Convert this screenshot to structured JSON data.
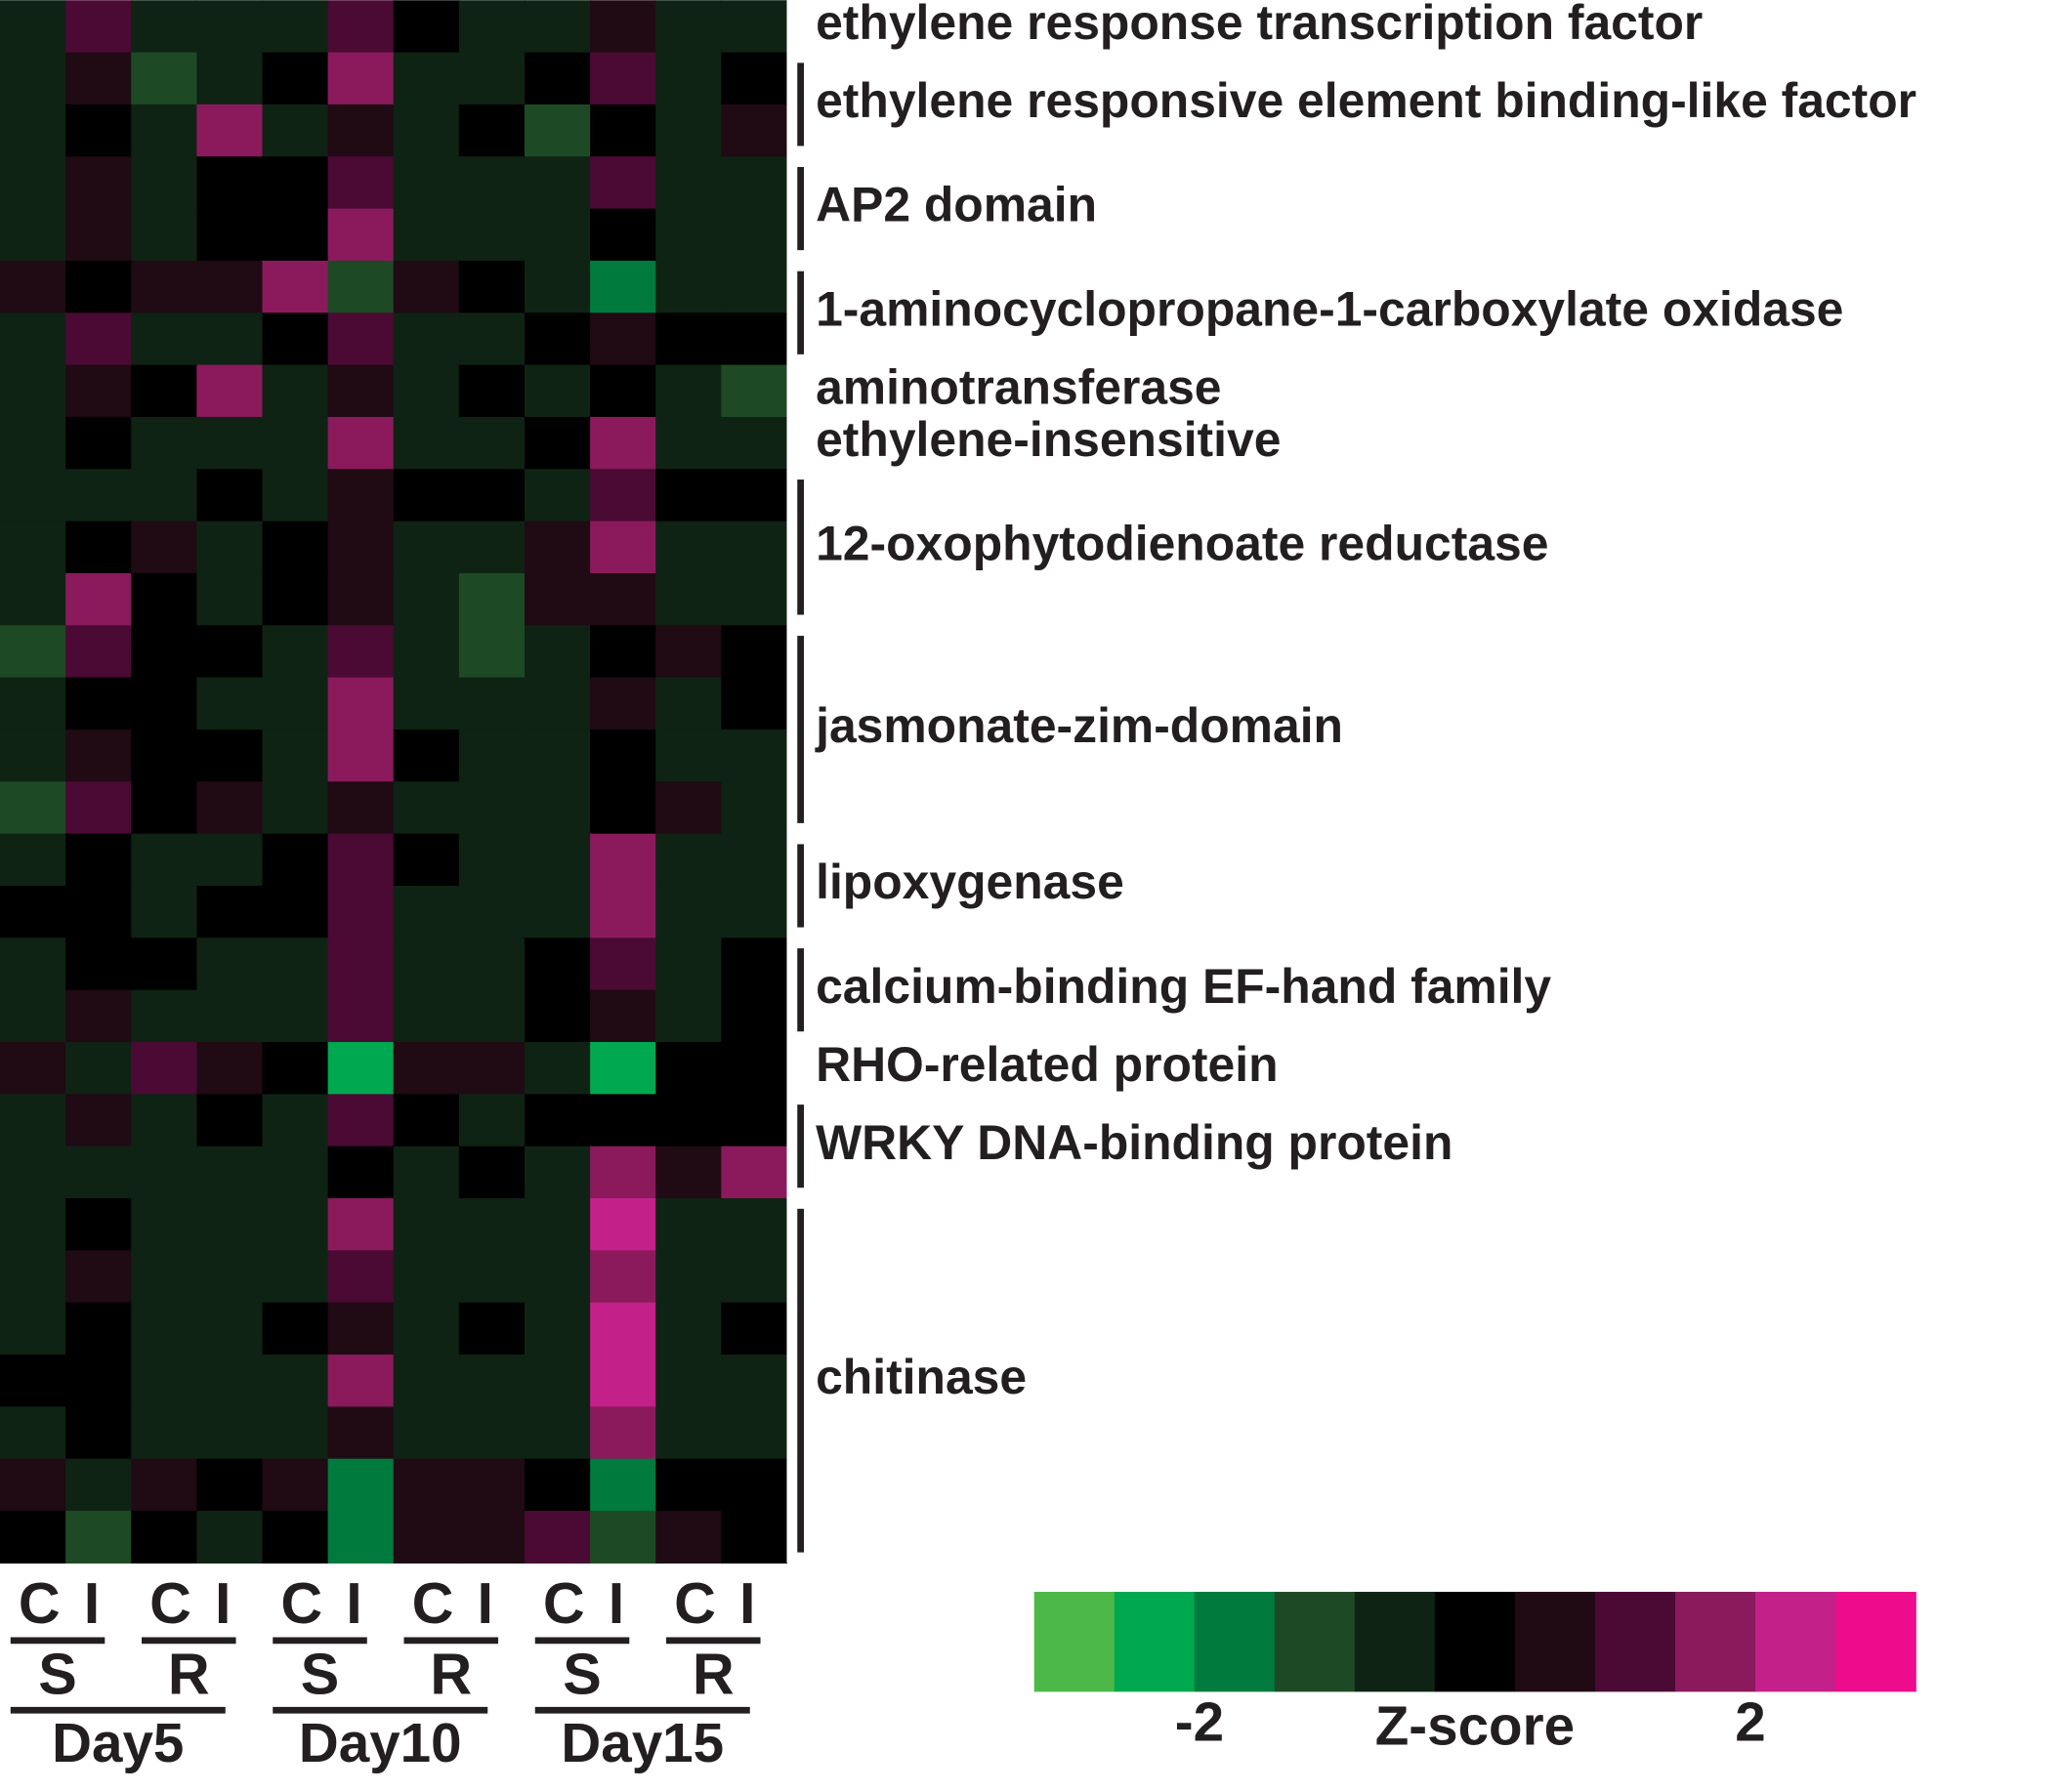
{
  "chart_data": {
    "type": "heatmap",
    "columns": [
      "C",
      "I",
      "C",
      "I",
      "C",
      "I",
      "C",
      "I",
      "C",
      "I",
      "C",
      "I"
    ],
    "column_groups": [
      "S",
      "R",
      "S",
      "R",
      "S",
      "R"
    ],
    "days": [
      "Day5",
      "Day10",
      "Day15"
    ],
    "groups": [
      {
        "label": "ethylene response transcription factor",
        "rows": [
          [
            -0.6,
            1.3,
            -0.3,
            -0.3,
            -0.5,
            1.0,
            -0.2,
            -0.5,
            -0.6,
            0.3,
            -0.6,
            -0.6
          ]
        ]
      },
      {
        "label": "ethylene responsive element binding-like factor",
        "rows": [
          [
            -0.7,
            0.3,
            -1.0,
            -0.5,
            0.1,
            1.8,
            -0.7,
            -0.7,
            0.0,
            1.1,
            -0.6,
            -0.2
          ],
          [
            -0.6,
            0.0,
            -0.6,
            2.0,
            -0.4,
            0.8,
            -0.6,
            0.0,
            -1.0,
            0.0,
            -0.5,
            0.3
          ]
        ]
      },
      {
        "label": "AP2 domain",
        "rows": [
          [
            -0.4,
            0.3,
            -0.6,
            0.0,
            0.0,
            1.2,
            -0.6,
            -0.4,
            -0.5,
            1.1,
            -0.4,
            -0.5
          ],
          [
            -0.4,
            0.6,
            -0.3,
            0.0,
            -0.2,
            1.5,
            -0.4,
            -0.6,
            -0.3,
            0.2,
            -0.5,
            -0.5
          ]
        ]
      },
      {
        "label": "1-aminocyclopropane-1-carboxylate oxidase",
        "rows": [
          [
            0.3,
            0.0,
            0.4,
            0.3,
            1.7,
            -1.0,
            0.3,
            0.0,
            -0.7,
            -1.8,
            -0.6,
            -0.6
          ],
          [
            -0.6,
            0.9,
            -0.4,
            -0.3,
            -0.2,
            0.9,
            -0.7,
            -0.7,
            0.2,
            0.3,
            -0.2,
            0.0
          ]
        ]
      },
      {
        "label": "aminotransferase",
        "rows": [
          [
            -0.5,
            0.3,
            -0.2,
            1.9,
            -0.4,
            0.4,
            -0.5,
            0.0,
            -0.8,
            0.2,
            -0.8,
            -0.9
          ]
        ]
      },
      {
        "label": "ethylene-insensitive",
        "rows": [
          [
            -0.6,
            0.1,
            -0.6,
            -0.6,
            -0.4,
            1.5,
            -0.5,
            -0.5,
            -0.2,
            2.0,
            -0.6,
            -0.6
          ]
        ]
      },
      {
        "label": "12-oxophytodienoate reductase",
        "rows": [
          [
            -0.5,
            -0.4,
            -0.5,
            -0.2,
            -0.5,
            0.4,
            0.0,
            0.0,
            -0.5,
            1.2,
            0.0,
            0.2
          ],
          [
            -0.5,
            0.0,
            0.3,
            -0.7,
            -0.2,
            0.4,
            -0.7,
            -0.7,
            0.6,
            1.5,
            -0.4,
            -0.5
          ],
          [
            -0.5,
            1.8,
            -0.1,
            -0.8,
            0.0,
            0.6,
            -0.6,
            -0.9,
            0.5,
            0.6,
            -0.6,
            -0.6
          ]
        ]
      },
      {
        "label": "jasmonate-zim-domain",
        "rows": [
          [
            -0.9,
            1.1,
            0.2,
            0.2,
            -0.6,
            0.9,
            -0.5,
            -0.9,
            -0.4,
            0.0,
            0.4,
            -0.2
          ],
          [
            -0.6,
            0.1,
            -0.2,
            -0.3,
            -0.5,
            1.6,
            -0.5,
            -0.5,
            -0.6,
            0.7,
            -0.3,
            -0.2
          ],
          [
            -0.4,
            0.3,
            0.2,
            -0.2,
            -0.6,
            1.6,
            -0.2,
            -0.5,
            -0.6,
            0.2,
            -0.3,
            -0.6
          ],
          [
            -0.9,
            1.2,
            0.1,
            0.7,
            -0.7,
            0.3,
            -0.6,
            -0.8,
            -0.7,
            0.0,
            0.6,
            -0.4
          ]
        ]
      },
      {
        "label": "lipoxygenase",
        "rows": [
          [
            -0.5,
            -0.2,
            -0.4,
            -0.5,
            0.1,
            1.1,
            -0.1,
            -0.3,
            -0.6,
            1.6,
            -0.6,
            -0.6
          ],
          [
            -0.2,
            -0.2,
            -0.5,
            0.1,
            -0.2,
            0.9,
            -0.5,
            -0.5,
            -0.4,
            1.7,
            -0.6,
            -0.6
          ]
        ]
      },
      {
        "label": "calcium-binding EF-hand family",
        "rows": [
          [
            -0.5,
            0.2,
            -0.2,
            -0.6,
            -0.4,
            1.3,
            -0.4,
            -0.3,
            -0.2,
            1.1,
            -0.8,
            -0.1
          ],
          [
            -0.5,
            0.8,
            -0.4,
            -0.5,
            -0.4,
            1.0,
            -0.3,
            -0.5,
            -0.1,
            0.3,
            -0.4,
            -0.2
          ]
        ]
      },
      {
        "label": "RHO-related protein",
        "rows": [
          [
            0.3,
            -0.8,
            0.9,
            0.3,
            0.1,
            -2.6,
            0.3,
            0.3,
            -0.3,
            -2.6,
            0.0,
            0.0
          ]
        ]
      },
      {
        "label": "WRKY DNA-binding protein",
        "rows": [
          [
            -0.4,
            0.3,
            -0.3,
            -0.2,
            -0.4,
            1.3,
            -0.2,
            -0.5,
            -0.2,
            0.0,
            -0.2,
            -0.1
          ],
          [
            -0.8,
            -0.7,
            -0.7,
            -0.4,
            -0.8,
            0.0,
            -0.6,
            -0.2,
            -0.4,
            1.5,
            0.3,
            1.6
          ]
        ]
      },
      {
        "label": "chitinase",
        "rows": [
          [
            -0.5,
            0.0,
            -0.6,
            -0.6,
            -0.4,
            1.5,
            -0.6,
            -0.6,
            -0.6,
            2.1,
            -0.6,
            -0.6
          ],
          [
            -0.6,
            0.3,
            -0.6,
            -0.6,
            -0.5,
            1.3,
            -0.6,
            -0.6,
            -0.6,
            1.8,
            -0.6,
            -0.5
          ],
          [
            -0.6,
            0.0,
            -0.6,
            -0.3,
            -0.2,
            0.8,
            -0.6,
            -0.2,
            -0.4,
            2.6,
            -0.6,
            -0.2
          ],
          [
            -0.2,
            0.0,
            -0.6,
            -0.6,
            -0.4,
            1.5,
            -0.6,
            -0.6,
            -0.5,
            2.3,
            -0.6,
            -0.6
          ],
          [
            -0.4,
            0.2,
            -0.3,
            -0.4,
            -0.4,
            0.4,
            -0.3,
            -0.4,
            -0.5,
            1.6,
            -0.4,
            -0.3
          ],
          [
            0.4,
            -0.6,
            0.3,
            0.1,
            0.3,
            -1.8,
            0.3,
            0.3,
            0.0,
            -1.8,
            0.0,
            0.1
          ],
          [
            0.2,
            -0.9,
            0.0,
            -0.3,
            0.0,
            -2.0,
            0.3,
            0.4,
            0.9,
            -1.0,
            0.8,
            0.1
          ]
        ]
      }
    ],
    "colorbar": {
      "label": "Z-score",
      "zlim": [
        -3.2,
        3.2
      ],
      "ticks": [
        -2,
        2
      ],
      "colors": [
        "#4cb848",
        "#00a850",
        "#007a3d",
        "#1d4a24",
        "#0f2314",
        "#000000",
        "#200a14",
        "#4a0a33",
        "#8a1a5c",
        "#c4208a",
        "#ec0c8c"
      ]
    }
  }
}
